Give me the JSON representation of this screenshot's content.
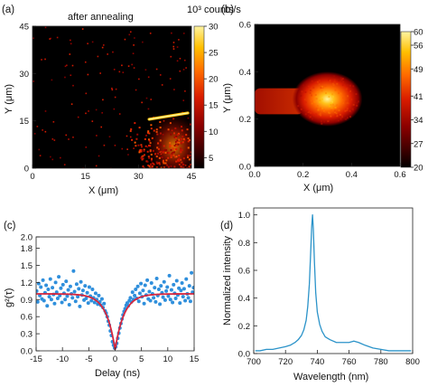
{
  "chart_data": [
    {
      "panel_label": "(a)",
      "type": "heatmap",
      "title": "after annealing",
      "xlabel": "X (μm)",
      "ylabel": "Y (μm)",
      "xlim": [
        0,
        45
      ],
      "ylim": [
        0,
        45
      ],
      "xticks": [
        "0",
        "15",
        "30",
        "45"
      ],
      "yticks": [
        "0",
        "15",
        "30",
        "45"
      ],
      "colorbar": {
        "label": "10³ counts/s",
        "range": [
          3,
          30
        ],
        "ticks": [
          "5",
          "10",
          "15",
          "20",
          "25",
          "30"
        ],
        "colors": [
          "#000000",
          "#3a0000",
          "#8b0000",
          "#d91c00",
          "#ff6a00",
          "#ffbf00",
          "#fff4a0"
        ]
      },
      "features": [
        {
          "kind": "bright_streak",
          "x": [
            33,
            44
          ],
          "y": [
            15.5,
            17.5
          ],
          "level": 30
        },
        {
          "kind": "bright_cluster",
          "x": [
            25,
            45
          ],
          "y": [
            0,
            16
          ],
          "level": 15
        },
        {
          "kind": "sparse_spots",
          "x": [
            0,
            45
          ],
          "y": [
            0,
            45
          ],
          "level": 8
        }
      ]
    },
    {
      "panel_label": "(b)",
      "type": "heatmap",
      "title": "",
      "xlabel": "X (μm)",
      "ylabel": "Y (μm)",
      "xlim": [
        0,
        0.6
      ],
      "ylim": [
        0,
        0.6
      ],
      "xticks": [
        "0.0",
        "0.2",
        "0.4",
        "0.6"
      ],
      "yticks": [
        "0.0",
        "0.2",
        "0.4",
        "0.6"
      ],
      "colorbar": {
        "range": [
          20,
          60
        ],
        "ticks": [
          "20",
          "27",
          "34",
          "41",
          "49",
          "56",
          "60"
        ],
        "colors": [
          "#000000",
          "#3a0000",
          "#8b0000",
          "#d91c00",
          "#ff6a00",
          "#ffbf00",
          "#fff4a0"
        ]
      },
      "features": [
        {
          "kind": "gaussian_spot",
          "center": [
            0.3,
            0.285
          ],
          "sigma": [
            0.1,
            0.08
          ],
          "peak": 60
        },
        {
          "kind": "tail",
          "x": [
            0,
            0.2
          ],
          "y": [
            0.22,
            0.33
          ],
          "level": 34
        }
      ]
    },
    {
      "panel_label": "(c)",
      "type": "scatter",
      "title": "",
      "xlabel": "Delay (ns)",
      "ylabel": "g²(τ)",
      "xlim": [
        -15,
        15
      ],
      "ylim": [
        0,
        2.0
      ],
      "xticks": [
        "-15",
        "-10",
        "-5",
        "0",
        "5",
        "10",
        "15"
      ],
      "yticks": [
        "0.0",
        "0.3",
        "0.6",
        "0.9",
        "1.2",
        "1.5",
        "1.8"
      ],
      "yticks_extra": [
        "2.0"
      ],
      "series": [
        {
          "kind": "points",
          "color": "#2f8fdc",
          "x": [
            -14.9,
            -14.7,
            -14.5,
            -14.3,
            -14.1,
            -13.9,
            -13.7,
            -13.5,
            -13.3,
            -13.1,
            -12.9,
            -12.7,
            -12.5,
            -12.3,
            -12.1,
            -11.9,
            -11.7,
            -11.5,
            -11.3,
            -11.1,
            -10.9,
            -10.7,
            -10.5,
            -10.3,
            -10.1,
            -9.9,
            -9.7,
            -9.5,
            -9.3,
            -9.1,
            -8.9,
            -8.7,
            -8.5,
            -8.3,
            -8.1,
            -7.9,
            -7.7,
            -7.5,
            -7.3,
            -7.1,
            -6.9,
            -6.7,
            -6.5,
            -6.3,
            -6.1,
            -5.9,
            -5.7,
            -5.5,
            -5.3,
            -5.1,
            -4.9,
            -4.7,
            -4.5,
            -4.3,
            -4.1,
            -3.9,
            -3.7,
            -3.5,
            -3.3,
            -3.1,
            -2.9,
            -2.7,
            -2.5,
            -2.3,
            -2.1,
            -1.9,
            -1.7,
            -1.5,
            -1.3,
            -1.1,
            -0.9,
            -0.7,
            -0.5,
            -0.3,
            -0.1,
            0.1,
            0.3,
            0.5,
            0.7,
            0.9,
            1.1,
            1.3,
            1.5,
            1.7,
            1.9,
            2.1,
            2.3,
            2.5,
            2.7,
            2.9,
            3.1,
            3.3,
            3.5,
            3.7,
            3.9,
            4.1,
            4.3,
            4.5,
            4.7,
            4.9,
            5.1,
            5.3,
            5.5,
            5.7,
            5.9,
            6.1,
            6.3,
            6.5,
            6.7,
            6.9,
            7.1,
            7.3,
            7.5,
            7.7,
            7.9,
            8.1,
            8.3,
            8.5,
            8.7,
            8.9,
            9.1,
            9.3,
            9.5,
            9.7,
            9.9,
            10.1,
            10.3,
            10.5,
            10.7,
            10.9,
            11.1,
            11.3,
            11.5,
            11.7,
            11.9,
            12.1,
            12.3,
            12.5,
            12.7,
            12.9,
            13.1,
            13.3,
            13.5,
            13.7,
            13.9,
            14.1,
            14.3,
            14.5,
            14.7,
            14.9
          ],
          "y": [
            1.05,
            0.86,
            1.18,
            0.97,
            1.12,
            0.91,
            1.24,
            0.88,
            1.02,
            1.15,
            0.79,
            1.08,
            0.95,
            1.26,
            0.9,
            1.11,
            0.99,
            0.83,
            1.2,
            1.03,
            0.92,
            1.3,
            0.97,
            1.1,
            0.85,
            1.16,
            1.01,
            0.9,
            1.22,
            0.96,
            1.07,
            0.81,
            1.13,
            1.0,
            0.93,
            1.4,
            1.04,
            0.87,
            1.17,
            0.95,
            1.09,
            0.78,
            1.21,
            0.98,
            1.06,
            0.89,
            1.14,
            0.92,
            1.02,
            0.84,
            1.12,
            0.96,
            0.88,
            1.08,
            0.93,
            0.85,
            1.01,
            0.9,
            0.82,
            0.97,
            0.86,
            0.8,
            0.91,
            0.76,
            0.83,
            0.7,
            0.66,
            0.6,
            0.52,
            0.45,
            0.35,
            0.27,
            0.16,
            0.1,
            0.05,
            0.07,
            0.13,
            0.22,
            0.31,
            0.4,
            0.48,
            0.56,
            0.63,
            0.69,
            0.74,
            0.8,
            0.84,
            0.79,
            0.88,
            0.93,
            0.86,
            1.03,
            0.9,
            0.97,
            1.08,
            0.92,
            1.13,
            0.87,
            1.01,
            1.18,
            0.95,
            1.06,
            0.83,
            1.15,
            0.98,
            1.24,
            0.91,
            1.04,
            0.88,
            1.19,
            1.0,
            0.93,
            1.11,
            0.86,
            1.27,
            0.97,
            1.08,
            0.82,
            1.14,
            1.02,
            0.94,
            1.21,
            0.89,
            1.05,
            1.12,
            0.96,
            1.32,
            0.9,
            1.07,
            0.85,
            1.16,
            1.01,
            0.92,
            1.23,
            0.98,
            1.1,
            0.84,
            1.06,
            1.19,
            0.95,
            1.09,
            0.88,
            1.26,
            1.0,
            0.93,
            1.14,
            0.87,
            1.37,
            1.03,
            1.11
          ]
        },
        {
          "kind": "fit_line",
          "color": "#d7263d",
          "model": "1 - a*exp(-|t|/tau)",
          "a": 0.98,
          "tau": 1.7,
          "baseline": 1.0
        }
      ]
    },
    {
      "panel_label": "(d)",
      "type": "line",
      "title": "",
      "xlabel": "Wavelength (nm)",
      "ylabel": "Normalized intensity",
      "xlim": [
        700,
        800
      ],
      "ylim": [
        0,
        1.05
      ],
      "xticks": [
        "700",
        "720",
        "740",
        "760",
        "780",
        "800"
      ],
      "yticks": [
        "0.0",
        "0.2",
        "0.4",
        "0.6",
        "0.8",
        "1.0"
      ],
      "series": [
        {
          "kind": "line",
          "color": "#2b93c9",
          "x": [
            701,
            704,
            708,
            712,
            716,
            720,
            723,
            726,
            728,
            730,
            731.5,
            733,
            734,
            735,
            735.8,
            736.5,
            737,
            737.5,
            738.2,
            739,
            740,
            741.5,
            743,
            745,
            748,
            752,
            756,
            760,
            763,
            766,
            770,
            775,
            780,
            785,
            790,
            795,
            799
          ],
          "y": [
            0.02,
            0.02,
            0.03,
            0.03,
            0.04,
            0.05,
            0.06,
            0.08,
            0.1,
            0.13,
            0.17,
            0.24,
            0.34,
            0.5,
            0.72,
            0.92,
            1.0,
            0.9,
            0.66,
            0.44,
            0.3,
            0.21,
            0.16,
            0.12,
            0.1,
            0.08,
            0.08,
            0.08,
            0.09,
            0.08,
            0.06,
            0.04,
            0.03,
            0.02,
            0.02,
            0.02,
            0.02
          ]
        }
      ]
    }
  ]
}
